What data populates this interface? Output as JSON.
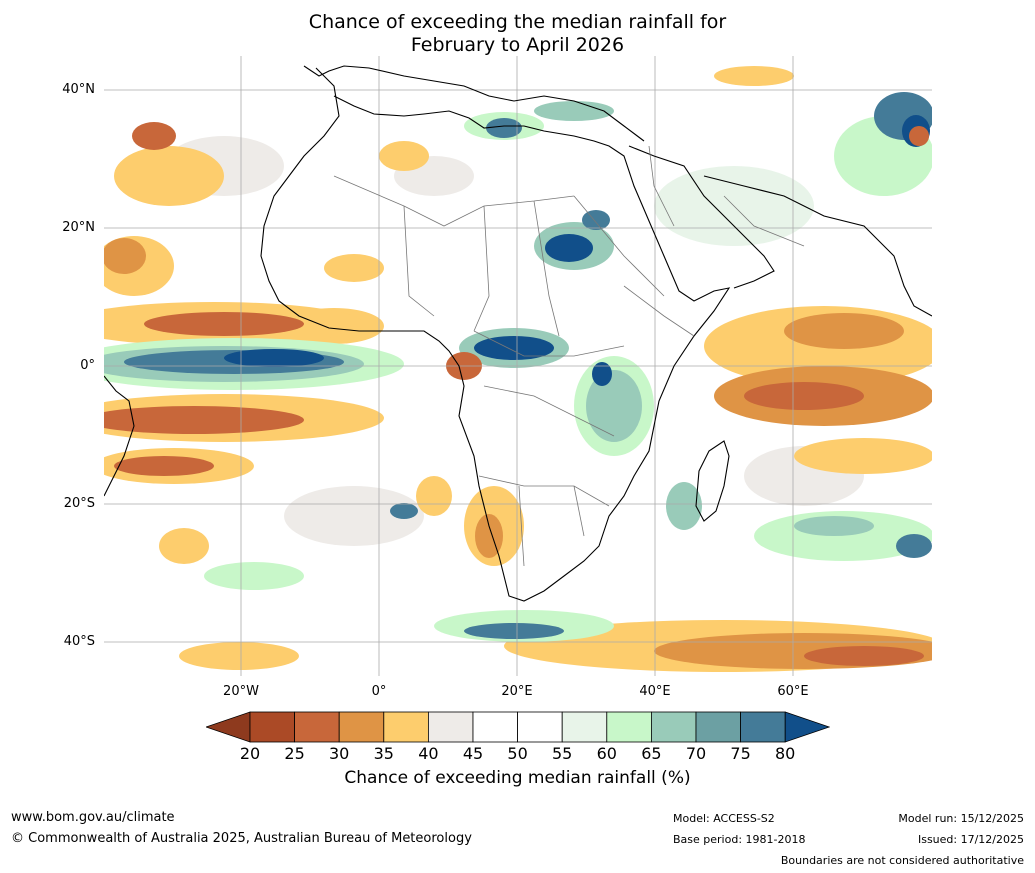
{
  "title": {
    "line1": "Chance of exceeding the median rainfall for",
    "line2": "February to April 2026"
  },
  "axes": {
    "lat_labels": [
      "40°N",
      "20°N",
      "0°",
      "20°S",
      "40°S"
    ],
    "lon_labels": [
      "20°W",
      "0°",
      "20°E",
      "40°E",
      "60°E"
    ]
  },
  "colorbar": {
    "ticks": [
      "20",
      "25",
      "30",
      "35",
      "40",
      "45",
      "50",
      "55",
      "60",
      "65",
      "70",
      "75",
      "80"
    ],
    "colors": [
      "#8e3a1e",
      "#ab4a26",
      "#c8673a",
      "#df9445",
      "#fdcd6d",
      "#eeebe8",
      "#ffffff",
      "#ffffff",
      "#e8f4e9",
      "#c8f7c9",
      "#99cbb9",
      "#6ca0a3",
      "#447b98",
      "#114f8a"
    ],
    "label": "Chance of exceeding median rainfall (%)"
  },
  "footer": {
    "website": "www.bom.gov.au/climate",
    "copyright": "© Commonwealth of Australia 2025, Australian Bureau of Meteorology",
    "model": "Model: ACCESS-S2",
    "base_period": "Base period: 1981-2018",
    "model_run": "Model run: 15/12/2025",
    "issued": "Issued: 17/12/2025",
    "disclaimer": "Boundaries are not considered authoritative"
  }
}
